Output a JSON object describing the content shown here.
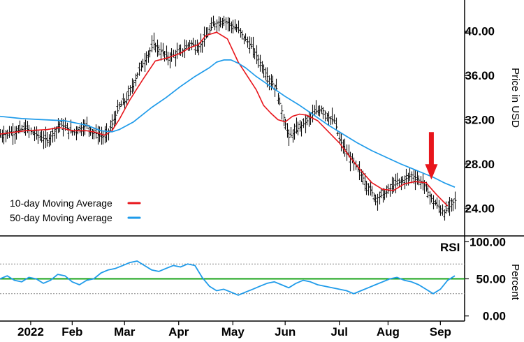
{
  "chart_data": [
    {
      "type": "ohlc_with_lines",
      "panel": "price",
      "ylabel": "Price in USD",
      "ylim": [
        22.0,
        42.5
      ],
      "yticks": [
        24.0,
        28.0,
        32.0,
        36.0,
        40.0
      ],
      "ytick_labels": [
        "24.00",
        "28.00",
        "32.00",
        "36.00",
        "40.00"
      ],
      "legend_position": "bottom-left",
      "x_range_days": [
        0,
        252
      ],
      "xticks": [
        {
          "day": 17,
          "label": "2022"
        },
        {
          "day": 65,
          "label": "Feb"
        },
        {
          "day": 105,
          "label": "Mar"
        },
        {
          "day": 148,
          "label": "Apr"
        },
        {
          "day": 190,
          "label": "May"
        },
        {
          "day": 232,
          "label": "Jun"
        }
      ],
      "price_anchors": {
        "x": [
          0,
          14,
          26,
          33,
          40,
          48,
          52,
          58,
          62,
          66,
          70,
          77,
          85,
          93,
          100,
          105,
          110,
          114,
          118,
          124,
          132,
          140,
          148,
          153,
          156,
          160,
          165,
          170,
          174,
          178,
          182,
          185,
          188,
          192,
          196,
          200,
          204,
          208,
          214,
          218,
          222,
          228,
          234,
          240,
          246,
          252
        ],
        "close": [
          30.6,
          31.2,
          30.1,
          31.6,
          30.9,
          31.5,
          30.8,
          30.4,
          31.6,
          33.2,
          33.8,
          36.5,
          38.8,
          37.6,
          38.1,
          38.9,
          38.6,
          39.5,
          40.6,
          41.0,
          40.1,
          38.4,
          35.9,
          34.8,
          32.8,
          30.4,
          31.2,
          31.9,
          32.6,
          33.0,
          32.2,
          31.9,
          30.2,
          29.0,
          28.0,
          27.0,
          25.9,
          24.9,
          25.4,
          26.1,
          26.4,
          27.0,
          26.3,
          24.6,
          23.6,
          24.7
        ]
      },
      "series": [
        {
          "name": "10-day Moving Average",
          "color": "#e8151b",
          "x": [
            0,
            14,
            26,
            33,
            40,
            48,
            52,
            58,
            62,
            66,
            72,
            79,
            86,
            93,
            100,
            105,
            110,
            114,
            120,
            126,
            132,
            138,
            142,
            146,
            150,
            154,
            158,
            162,
            166,
            170,
            176,
            182,
            188,
            194,
            200,
            206,
            212,
            218,
            224,
            230,
            236,
            242,
            248
          ],
          "y": [
            30.7,
            31.0,
            31.1,
            31.3,
            31.0,
            31.0,
            30.9,
            30.6,
            31.0,
            32.0,
            33.8,
            35.6,
            37.3,
            37.6,
            38.0,
            38.5,
            38.8,
            39.6,
            39.9,
            39.3,
            37.2,
            35.7,
            34.7,
            33.3,
            32.6,
            32.0,
            31.8,
            32.3,
            32.5,
            32.4,
            31.9,
            30.9,
            29.9,
            28.6,
            27.4,
            26.3,
            25.7,
            25.6,
            26.2,
            26.4,
            26.3,
            25.2,
            24.2
          ]
        },
        {
          "name": "50-day Moving Average",
          "color": "#1f9bea",
          "x": [
            0,
            12,
            24,
            36,
            48,
            56,
            62,
            66,
            74,
            84,
            92,
            100,
            108,
            116,
            120,
            124,
            128,
            132,
            136,
            142,
            150,
            158,
            166,
            174,
            182,
            190,
            198,
            206,
            214,
            222,
            228,
            234,
            240,
            246,
            252
          ],
          "y": [
            32.3,
            32.1,
            32.0,
            31.9,
            31.5,
            31.0,
            30.9,
            31.1,
            31.8,
            33.1,
            34.0,
            35.0,
            35.9,
            36.7,
            37.2,
            37.4,
            37.4,
            37.1,
            36.7,
            35.9,
            35.0,
            34.1,
            33.3,
            32.4,
            31.5,
            30.7,
            29.9,
            29.2,
            28.6,
            28.0,
            27.6,
            27.2,
            26.8,
            26.3,
            25.9
          ]
        }
      ],
      "annotations": [
        {
          "type": "arrow",
          "direction": "down",
          "color": "#e8151b",
          "x_day": 239,
          "target_price": 26.4
        }
      ]
    },
    {
      "type": "line",
      "panel": "rsi",
      "title": "RSI",
      "ylabel": "Percent",
      "ylim": [
        -5,
        105
      ],
      "yticks": [
        0,
        50,
        100
      ],
      "ytick_labels": [
        "0.00",
        "50.00",
        "100.00"
      ],
      "reference_lines": [
        {
          "value": 70,
          "style": "dotted",
          "color": "#888888"
        },
        {
          "value": 30,
          "style": "dotted",
          "color": "#888888"
        },
        {
          "value": 50,
          "style": "solid",
          "color": "#19a319"
        }
      ],
      "xticks": [
        {
          "day": 17,
          "label": "2022"
        },
        {
          "day": 40,
          "label": "Feb"
        },
        {
          "day": 69,
          "label": "Mar"
        },
        {
          "day": 99,
          "label": "Apr"
        },
        {
          "day": 129,
          "label": "May"
        },
        {
          "day": 158,
          "label": "Jun"
        },
        {
          "day": 188,
          "label": "Jul"
        },
        {
          "day": 215,
          "label": "Aug"
        },
        {
          "day": 244,
          "label": "Sep"
        }
      ],
      "series": [
        {
          "color": "#1f9bea",
          "x": [
            0,
            4,
            8,
            12,
            16,
            20,
            24,
            28,
            32,
            36,
            40,
            44,
            48,
            52,
            56,
            60,
            64,
            68,
            72,
            76,
            80,
            84,
            88,
            92,
            96,
            100,
            104,
            108,
            112,
            116,
            120,
            124,
            128,
            132,
            136,
            140,
            144,
            148,
            152,
            156,
            160,
            164,
            168,
            172,
            176,
            180,
            184,
            188,
            192,
            196,
            200,
            204,
            208,
            212,
            216,
            220,
            224,
            228,
            232,
            236,
            240,
            244,
            248,
            252
          ],
          "y": [
            50,
            54,
            48,
            46,
            52,
            50,
            44,
            48,
            56,
            54,
            46,
            42,
            48,
            50,
            58,
            62,
            64,
            68,
            72,
            74,
            68,
            62,
            60,
            64,
            68,
            66,
            70,
            68,
            52,
            40,
            34,
            36,
            32,
            28,
            32,
            36,
            40,
            44,
            46,
            42,
            38,
            44,
            48,
            46,
            42,
            40,
            38,
            36,
            34,
            30,
            34,
            38,
            42,
            46,
            50,
            52,
            48,
            46,
            42,
            36,
            30,
            36,
            48,
            54
          ]
        }
      ]
    }
  ],
  "legend": {
    "items": [
      {
        "label": "10-day Moving Average",
        "color": "#e8151b"
      },
      {
        "label": "50-day Moving Average",
        "color": "#1f9bea"
      }
    ]
  }
}
